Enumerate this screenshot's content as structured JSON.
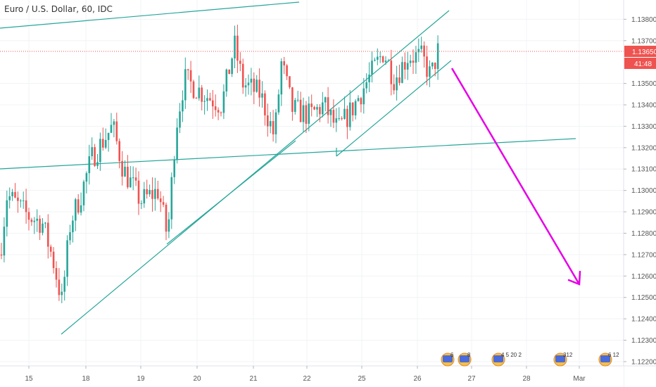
{
  "header": {
    "symbol_title": "Euro / U.S. Dollar, 60, IDC"
  },
  "chart_data": {
    "type": "candlestick",
    "y_ticks": [
      "1.13800",
      "1.13700",
      "1.13500",
      "1.13400",
      "1.13300",
      "1.13200",
      "1.13100",
      "1.13000",
      "1.12900",
      "1.12800",
      "1.12700",
      "1.12600",
      "1.12500",
      "1.12400",
      "1.12300",
      "1.12200"
    ],
    "ylim": [
      1.1218,
      1.1389
    ],
    "x_ticks": [
      "15",
      "18",
      "19",
      "20",
      "21",
      "22",
      "25",
      "26",
      "27",
      "28",
      "Mar"
    ],
    "last_price": "1.13650",
    "countdown": "41:48",
    "up_color": "#26a69a",
    "down_color": "#ef5350",
    "annotation_color": "#e600e6",
    "trendline_color": "#26a69a",
    "event_badges": [
      "6",
      "8",
      "4",
      "5",
      "20",
      "2",
      "312",
      "6",
      "12"
    ]
  }
}
